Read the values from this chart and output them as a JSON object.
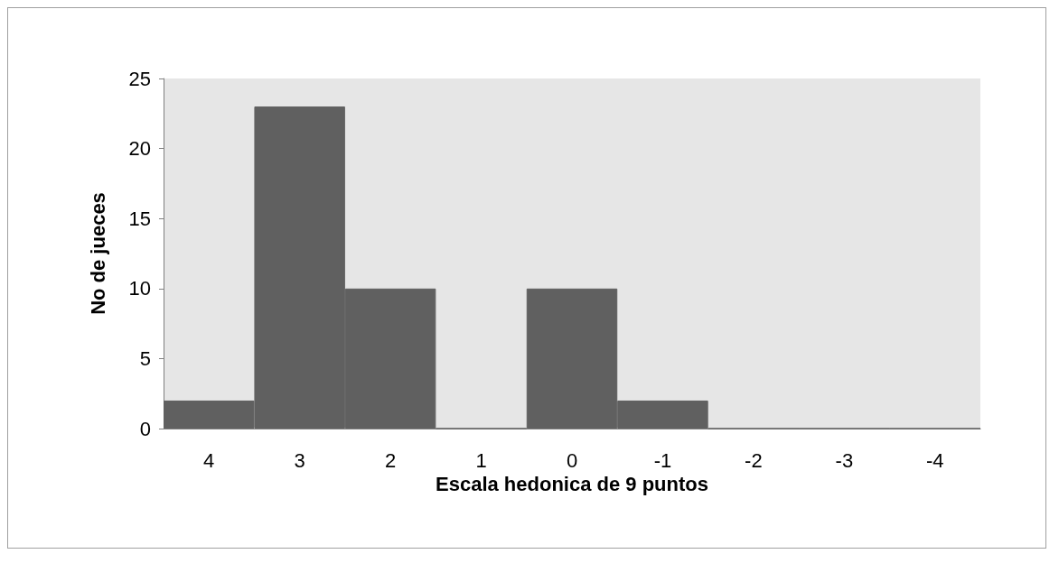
{
  "chart_data": {
    "type": "bar",
    "xlabel": "Escala hedonica de 9 puntos",
    "ylabel": "No de jueces",
    "categories": [
      "4",
      "3",
      "2",
      "1",
      "0",
      "-1",
      "-2",
      "-3",
      "-4"
    ],
    "values": [
      2,
      23,
      10,
      0,
      10,
      2,
      0,
      0,
      0
    ],
    "color": "#606060",
    "ylim": [
      0,
      25
    ],
    "yticks": [
      0,
      5,
      10,
      15,
      20,
      25
    ],
    "grid": false
  }
}
